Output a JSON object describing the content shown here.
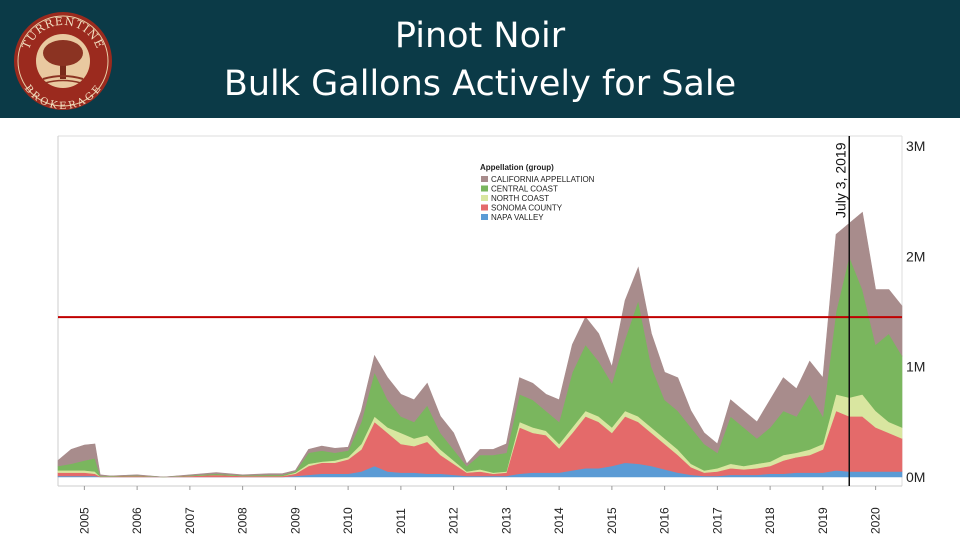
{
  "header": {
    "title_line1": "Pinot Noir",
    "title_line2": "Bulk Gallons Actively for Sale",
    "logo_text_top": "TURRENTINE",
    "logo_text_bottom": "BROKERAGE"
  },
  "chart_data": {
    "type": "area",
    "stacked": true,
    "title": "Pinot Noir Bulk Gallons Actively for Sale",
    "xlabel": "",
    "ylabel": "",
    "x_ticks": [
      "2005",
      "2006",
      "2007",
      "2008",
      "2009",
      "2010",
      "2011",
      "2012",
      "2013",
      "2014",
      "2015",
      "2016",
      "2017",
      "2018",
      "2019",
      "2020"
    ],
    "y_ticks": [
      "0M",
      "1M",
      "2M",
      "3M"
    ],
    "xlim": [
      2004.5,
      2020.5
    ],
    "ylim": [
      0,
      3.0
    ],
    "y_units": "millions of gallons",
    "y_axis_position": "right",
    "legend": {
      "title": "Appellation (group)",
      "placement": "top-center"
    },
    "reference_line": {
      "value": 1.45,
      "color": "#c00000"
    },
    "annotation": {
      "label": "July 3, 2019",
      "x": 2019.5
    },
    "x": [
      2004.5,
      2004.75,
      2005.0,
      2005.2,
      2005.3,
      2005.5,
      2006.0,
      2006.5,
      2007.0,
      2007.5,
      2008.0,
      2008.5,
      2008.75,
      2009.0,
      2009.25,
      2009.5,
      2009.75,
      2010.0,
      2010.25,
      2010.5,
      2010.75,
      2011.0,
      2011.25,
      2011.5,
      2011.75,
      2012.0,
      2012.25,
      2012.5,
      2012.75,
      2013.0,
      2013.25,
      2013.5,
      2013.75,
      2014.0,
      2014.25,
      2014.5,
      2014.75,
      2015.0,
      2015.25,
      2015.5,
      2015.75,
      2016.0,
      2016.25,
      2016.5,
      2016.75,
      2017.0,
      2017.25,
      2017.5,
      2017.75,
      2018.0,
      2018.25,
      2018.5,
      2018.75,
      2019.0,
      2019.25,
      2019.5,
      2019.75,
      2020.0,
      2020.25,
      2020.5
    ],
    "series": [
      {
        "name": "NAPA VALLEY",
        "color": "#5b9bd5",
        "values": [
          0.01,
          0.01,
          0.01,
          0.01,
          0,
          0,
          0,
          0,
          0,
          0,
          0,
          0,
          0,
          0.01,
          0.02,
          0.03,
          0.03,
          0.03,
          0.05,
          0.1,
          0.05,
          0.04,
          0.04,
          0.03,
          0.03,
          0.02,
          0.01,
          0.01,
          0.01,
          0.01,
          0.03,
          0.04,
          0.04,
          0.04,
          0.06,
          0.08,
          0.08,
          0.1,
          0.13,
          0.12,
          0.1,
          0.07,
          0.04,
          0.02,
          0.01,
          0.01,
          0.02,
          0.02,
          0.02,
          0.03,
          0.03,
          0.04,
          0.04,
          0.04,
          0.06,
          0.05,
          0.05,
          0.05,
          0.05,
          0.05
        ]
      },
      {
        "name": "SONOMA COUNTY",
        "color": "#e46a6a",
        "values": [
          0.03,
          0.03,
          0.03,
          0.02,
          0.005,
          0.005,
          0.01,
          0,
          0.01,
          0.02,
          0.01,
          0.01,
          0.01,
          0.02,
          0.08,
          0.1,
          0.1,
          0.13,
          0.2,
          0.4,
          0.35,
          0.26,
          0.24,
          0.29,
          0.17,
          0.1,
          0.03,
          0.04,
          0.02,
          0.03,
          0.42,
          0.36,
          0.34,
          0.22,
          0.34,
          0.47,
          0.42,
          0.3,
          0.42,
          0.38,
          0.3,
          0.23,
          0.16,
          0.07,
          0.03,
          0.04,
          0.06,
          0.05,
          0.06,
          0.07,
          0.12,
          0.14,
          0.16,
          0.21,
          0.54,
          0.5,
          0.5,
          0.4,
          0.35,
          0.3
        ]
      },
      {
        "name": "NORTH COAST",
        "color": "#d9e6a0",
        "values": [
          0.02,
          0.02,
          0.02,
          0.02,
          0,
          0,
          0,
          0,
          0,
          0,
          0,
          0,
          0,
          0.01,
          0.02,
          0.01,
          0.02,
          0.02,
          0.05,
          0.05,
          0.05,
          0.1,
          0.07,
          0.06,
          0.05,
          0.03,
          0.01,
          0.02,
          0.01,
          0.01,
          0.05,
          0.05,
          0.04,
          0.04,
          0.05,
          0.05,
          0.05,
          0.05,
          0.05,
          0.05,
          0.05,
          0.05,
          0.05,
          0.03,
          0.02,
          0.03,
          0.04,
          0.03,
          0.04,
          0.04,
          0.05,
          0.04,
          0.05,
          0.05,
          0.15,
          0.17,
          0.2,
          0.15,
          0.1,
          0.1
        ]
      },
      {
        "name": "CENTRAL COAST",
        "color": "#7ab65e",
        "values": [
          0.04,
          0.06,
          0.09,
          0.12,
          0.005,
          0.005,
          0.005,
          0,
          0.005,
          0.01,
          0.005,
          0.01,
          0.01,
          0.01,
          0.1,
          0.1,
          0.07,
          0.06,
          0.2,
          0.4,
          0.25,
          0.15,
          0.15,
          0.27,
          0.15,
          0.1,
          0.05,
          0.13,
          0.16,
          0.17,
          0.25,
          0.25,
          0.18,
          0.2,
          0.5,
          0.6,
          0.5,
          0.4,
          0.65,
          1.05,
          0.55,
          0.35,
          0.35,
          0.33,
          0.24,
          0.14,
          0.43,
          0.35,
          0.23,
          0.31,
          0.4,
          0.33,
          0.5,
          0.25,
          0.75,
          1.28,
          0.95,
          0.6,
          0.8,
          0.65
        ]
      },
      {
        "name": "CALIFORNIA APPELLATION",
        "color": "#a88c8c",
        "values": [
          0.05,
          0.13,
          0.14,
          0.13,
          0.01,
          0,
          0.005,
          0,
          0.005,
          0.01,
          0.005,
          0.01,
          0.01,
          0.01,
          0.03,
          0.04,
          0.04,
          0.03,
          0.1,
          0.15,
          0.2,
          0.2,
          0.2,
          0.2,
          0.15,
          0.15,
          0.02,
          0.05,
          0.05,
          0.08,
          0.15,
          0.15,
          0.15,
          0.2,
          0.25,
          0.25,
          0.25,
          0.15,
          0.35,
          0.3,
          0.3,
          0.25,
          0.3,
          0.15,
          0.1,
          0.08,
          0.15,
          0.15,
          0.15,
          0.25,
          0.3,
          0.25,
          0.3,
          0.35,
          0.7,
          0.3,
          0.7,
          0.5,
          0.4,
          0.45
        ]
      }
    ]
  }
}
